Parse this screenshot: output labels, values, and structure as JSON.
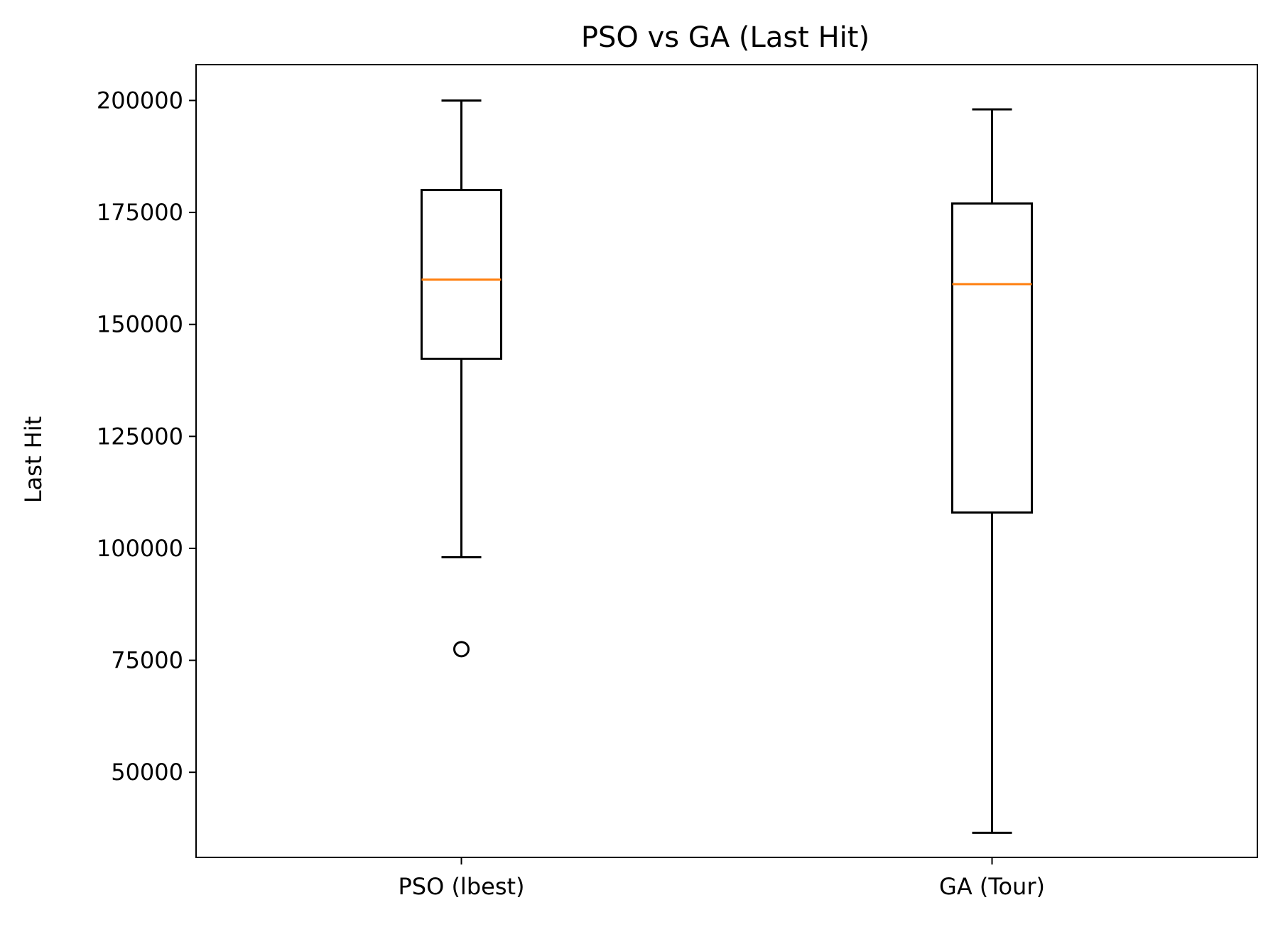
{
  "chart_data": {
    "type": "box",
    "title": "PSO vs GA (Last Hit)",
    "xlabel": "",
    "ylabel": "Last Hit",
    "ylim": [
      31000,
      208000
    ],
    "yticks": [
      50000,
      75000,
      100000,
      125000,
      150000,
      175000,
      200000
    ],
    "ytick_labels": [
      "50000",
      "75000",
      "100000",
      "125000",
      "150000",
      "175000",
      "200000"
    ],
    "categories": [
      "PSO (lbest)",
      "GA (Tour)"
    ],
    "boxes": [
      {
        "category": "PSO (lbest)",
        "whisker_low": 98000,
        "q1": 142300,
        "median": 160000,
        "q3": 180000,
        "whisker_high": 200000,
        "outliers": [
          77500
        ]
      },
      {
        "category": "GA (Tour)",
        "whisker_low": 36500,
        "q1": 108000,
        "median": 159000,
        "q3": 177000,
        "whisker_high": 198000,
        "outliers": []
      }
    ],
    "grid": false,
    "colors": {
      "box": "#000000",
      "median": "#ff7f0e",
      "outlier": "#000000"
    }
  }
}
